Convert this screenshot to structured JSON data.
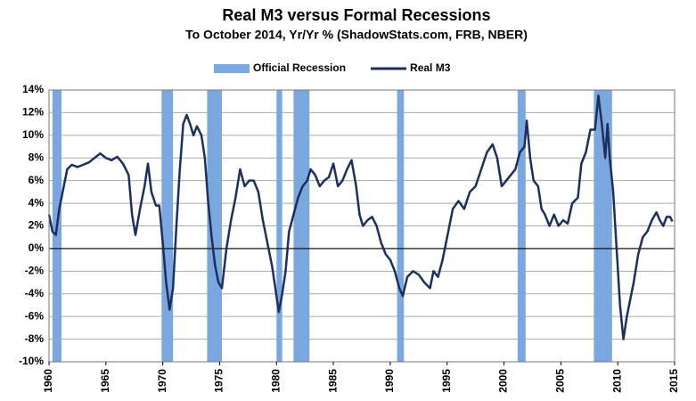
{
  "chart_data": {
    "type": "line",
    "title": "Real M3 versus Formal Recessions",
    "subtitle": "To October 2014, Yr/Yr %  (ShadowStats.com, FRB, NBER)",
    "series": [
      {
        "name": "Official Recession",
        "type": "band",
        "color": "#7ba7e1",
        "ranges": [
          [
            1960.3,
            1961.1
          ],
          [
            1969.9,
            1970.9
          ],
          [
            1973.9,
            1975.2
          ],
          [
            1980.0,
            1980.5
          ],
          [
            1981.5,
            1982.9
          ],
          [
            1990.6,
            1991.2
          ],
          [
            2001.2,
            2001.9
          ],
          [
            2007.9,
            2009.5
          ]
        ]
      },
      {
        "name": "Real M3",
        "type": "line",
        "color": "#1c2f5e",
        "x": [
          1960.0,
          1960.3,
          1960.6,
          1960.9,
          1961.3,
          1961.6,
          1962.0,
          1962.5,
          1963.0,
          1963.5,
          1964.0,
          1964.5,
          1965.0,
          1965.5,
          1966.0,
          1966.5,
          1967.0,
          1967.3,
          1967.6,
          1968.0,
          1968.4,
          1968.7,
          1969.0,
          1969.4,
          1969.7,
          1970.0,
          1970.3,
          1970.6,
          1970.9,
          1971.2,
          1971.5,
          1971.8,
          1972.1,
          1972.4,
          1972.7,
          1973.0,
          1973.4,
          1973.7,
          1974.0,
          1974.3,
          1974.6,
          1974.9,
          1975.2,
          1975.6,
          1976.0,
          1976.4,
          1976.8,
          1977.2,
          1977.6,
          1978.0,
          1978.4,
          1978.8,
          1979.2,
          1979.6,
          1979.9,
          1980.2,
          1980.5,
          1980.8,
          1981.1,
          1981.5,
          1981.9,
          1982.3,
          1982.7,
          1983.0,
          1983.4,
          1983.8,
          1984.2,
          1984.6,
          1985.0,
          1985.4,
          1985.8,
          1986.2,
          1986.6,
          1987.0,
          1987.3,
          1987.6,
          1988.0,
          1988.4,
          1988.8,
          1989.2,
          1989.6,
          1990.0,
          1990.4,
          1990.8,
          1991.1,
          1991.5,
          1992.0,
          1992.5,
          1993.0,
          1993.5,
          1993.8,
          1994.2,
          1994.6,
          1995.0,
          1995.5,
          1996.0,
          1996.5,
          1997.0,
          1997.5,
          1998.0,
          1998.5,
          1999.0,
          1999.4,
          1999.8,
          2000.2,
          2000.6,
          2001.0,
          2001.4,
          2001.8,
          2002.0,
          2002.3,
          2002.6,
          2003.0,
          2003.3,
          2003.6,
          2004.0,
          2004.4,
          2004.8,
          2005.2,
          2005.6,
          2006.0,
          2006.5,
          2006.8,
          2007.2,
          2007.6,
          2008.0,
          2008.3,
          2008.6,
          2008.9,
          2009.1,
          2009.3,
          2009.6,
          2009.9,
          2010.2,
          2010.5,
          2010.8,
          2011.1,
          2011.4,
          2011.8,
          2012.2,
          2012.6,
          2013.0,
          2013.4,
          2013.7,
          2014.0,
          2014.3,
          2014.6,
          2014.8
        ],
        "values": [
          3.0,
          1.5,
          1.2,
          3.5,
          5.5,
          7.0,
          7.4,
          7.2,
          7.4,
          7.6,
          8.0,
          8.4,
          8.0,
          7.8,
          8.1,
          7.5,
          6.5,
          3.0,
          1.2,
          3.5,
          5.5,
          7.5,
          5.0,
          3.8,
          3.8,
          0.5,
          -3.0,
          -5.4,
          -3.5,
          2.0,
          7.0,
          11.0,
          11.8,
          11.0,
          10.0,
          10.8,
          10.0,
          8.0,
          4.0,
          1.0,
          -1.5,
          -3.0,
          -3.5,
          0.0,
          2.5,
          4.5,
          7.0,
          5.5,
          6.0,
          6.0,
          5.0,
          2.5,
          0.5,
          -1.5,
          -3.5,
          -5.6,
          -4.0,
          -2.0,
          1.5,
          3.0,
          4.5,
          5.5,
          6.0,
          7.0,
          6.5,
          5.5,
          6.0,
          6.3,
          7.5,
          5.5,
          6.0,
          7.0,
          7.8,
          5.5,
          3.0,
          2.0,
          2.5,
          2.8,
          2.0,
          0.5,
          -0.5,
          -1.0,
          -2.0,
          -3.5,
          -4.2,
          -2.5,
          -2.0,
          -2.3,
          -3.0,
          -3.5,
          -2.0,
          -2.5,
          -1.0,
          1.0,
          3.5,
          4.2,
          3.5,
          5.0,
          5.5,
          7.0,
          8.5,
          9.2,
          8.0,
          5.5,
          6.0,
          6.5,
          7.0,
          8.5,
          9.0,
          11.3,
          8.0,
          6.0,
          5.5,
          3.5,
          3.0,
          2.0,
          3.0,
          2.0,
          2.5,
          2.2,
          4.0,
          4.5,
          7.5,
          8.5,
          10.5,
          10.5,
          13.5,
          11.0,
          8.0,
          11.0,
          8.0,
          5.0,
          0.0,
          -5.0,
          -8.0,
          -6.0,
          -4.5,
          -3.0,
          -0.5,
          1.0,
          1.5,
          2.5,
          3.2,
          2.5,
          2.0,
          2.8,
          2.8,
          2.4
        ]
      }
    ],
    "xlim": [
      1960,
      2015
    ],
    "xticks": [
      1960,
      1965,
      1970,
      1975,
      1980,
      1985,
      1990,
      1995,
      2000,
      2005,
      2010,
      2015
    ],
    "ylim": [
      -10,
      14
    ],
    "yticks": [
      {
        "value": -10,
        "label": "-10%"
      },
      {
        "value": -8,
        "label": "-8%"
      },
      {
        "value": -6,
        "label": "-6%"
      },
      {
        "value": -4,
        "label": "-4%"
      },
      {
        "value": -2,
        "label": "-2%"
      },
      {
        "value": 0,
        "label": "0%"
      },
      {
        "value": 2,
        "label": "2%"
      },
      {
        "value": 4,
        "label": "4%"
      },
      {
        "value": 6,
        "label": "6%"
      },
      {
        "value": 8,
        "label": "8%"
      },
      {
        "value": 10,
        "label": "10%"
      },
      {
        "value": 12,
        "label": "12%"
      },
      {
        "value": 14,
        "label": "14%"
      }
    ],
    "grid": true
  }
}
